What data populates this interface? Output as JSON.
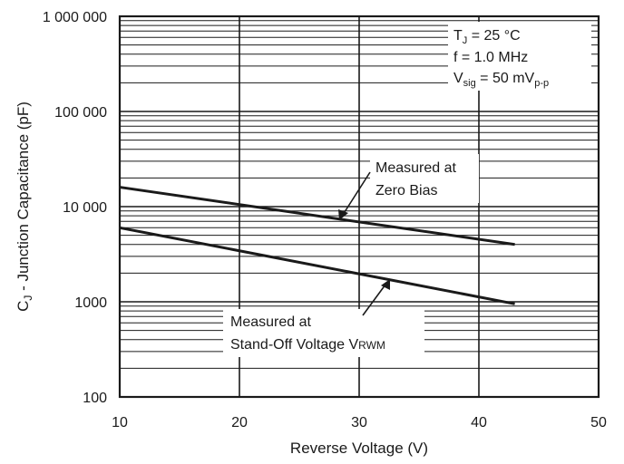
{
  "chart_data": {
    "type": "line",
    "title": "",
    "xlabel": "Reverse Voltage (V)",
    "ylabel": {
      "main": "C",
      "sub": "J",
      "rest": " - Junction Capacitance (pF)"
    },
    "xlim": [
      10,
      50
    ],
    "ylim": [
      100,
      1000000
    ],
    "yscale": "log",
    "grid": true,
    "x_ticks": [
      "10",
      "20",
      "30",
      "40",
      "50"
    ],
    "y_ticks": [
      "100",
      "1000",
      "10 000",
      "100 000",
      "1 000 000"
    ],
    "series": [
      {
        "x": [
          10,
          43
        ],
        "y": [
          16000,
          4000
        ]
      },
      {
        "x": [
          10,
          43
        ],
        "y": [
          6000,
          950
        ]
      }
    ],
    "annotations": {
      "zero_bias": [
        "Measured at",
        "Zero Bias"
      ],
      "standoff": {
        "line1": "Measured at",
        "line2": "Stand-Off Voltage V",
        "sub": "RWM"
      }
    },
    "conditions": {
      "tj": {
        "main": "T",
        "sub": "J",
        "rest": " = 25 °C"
      },
      "freq": "f = 1.0 MHz",
      "vsig": {
        "main": "V",
        "sub": "sig",
        "rest": " = 50 mV",
        "sub2": "p-p"
      }
    }
  }
}
